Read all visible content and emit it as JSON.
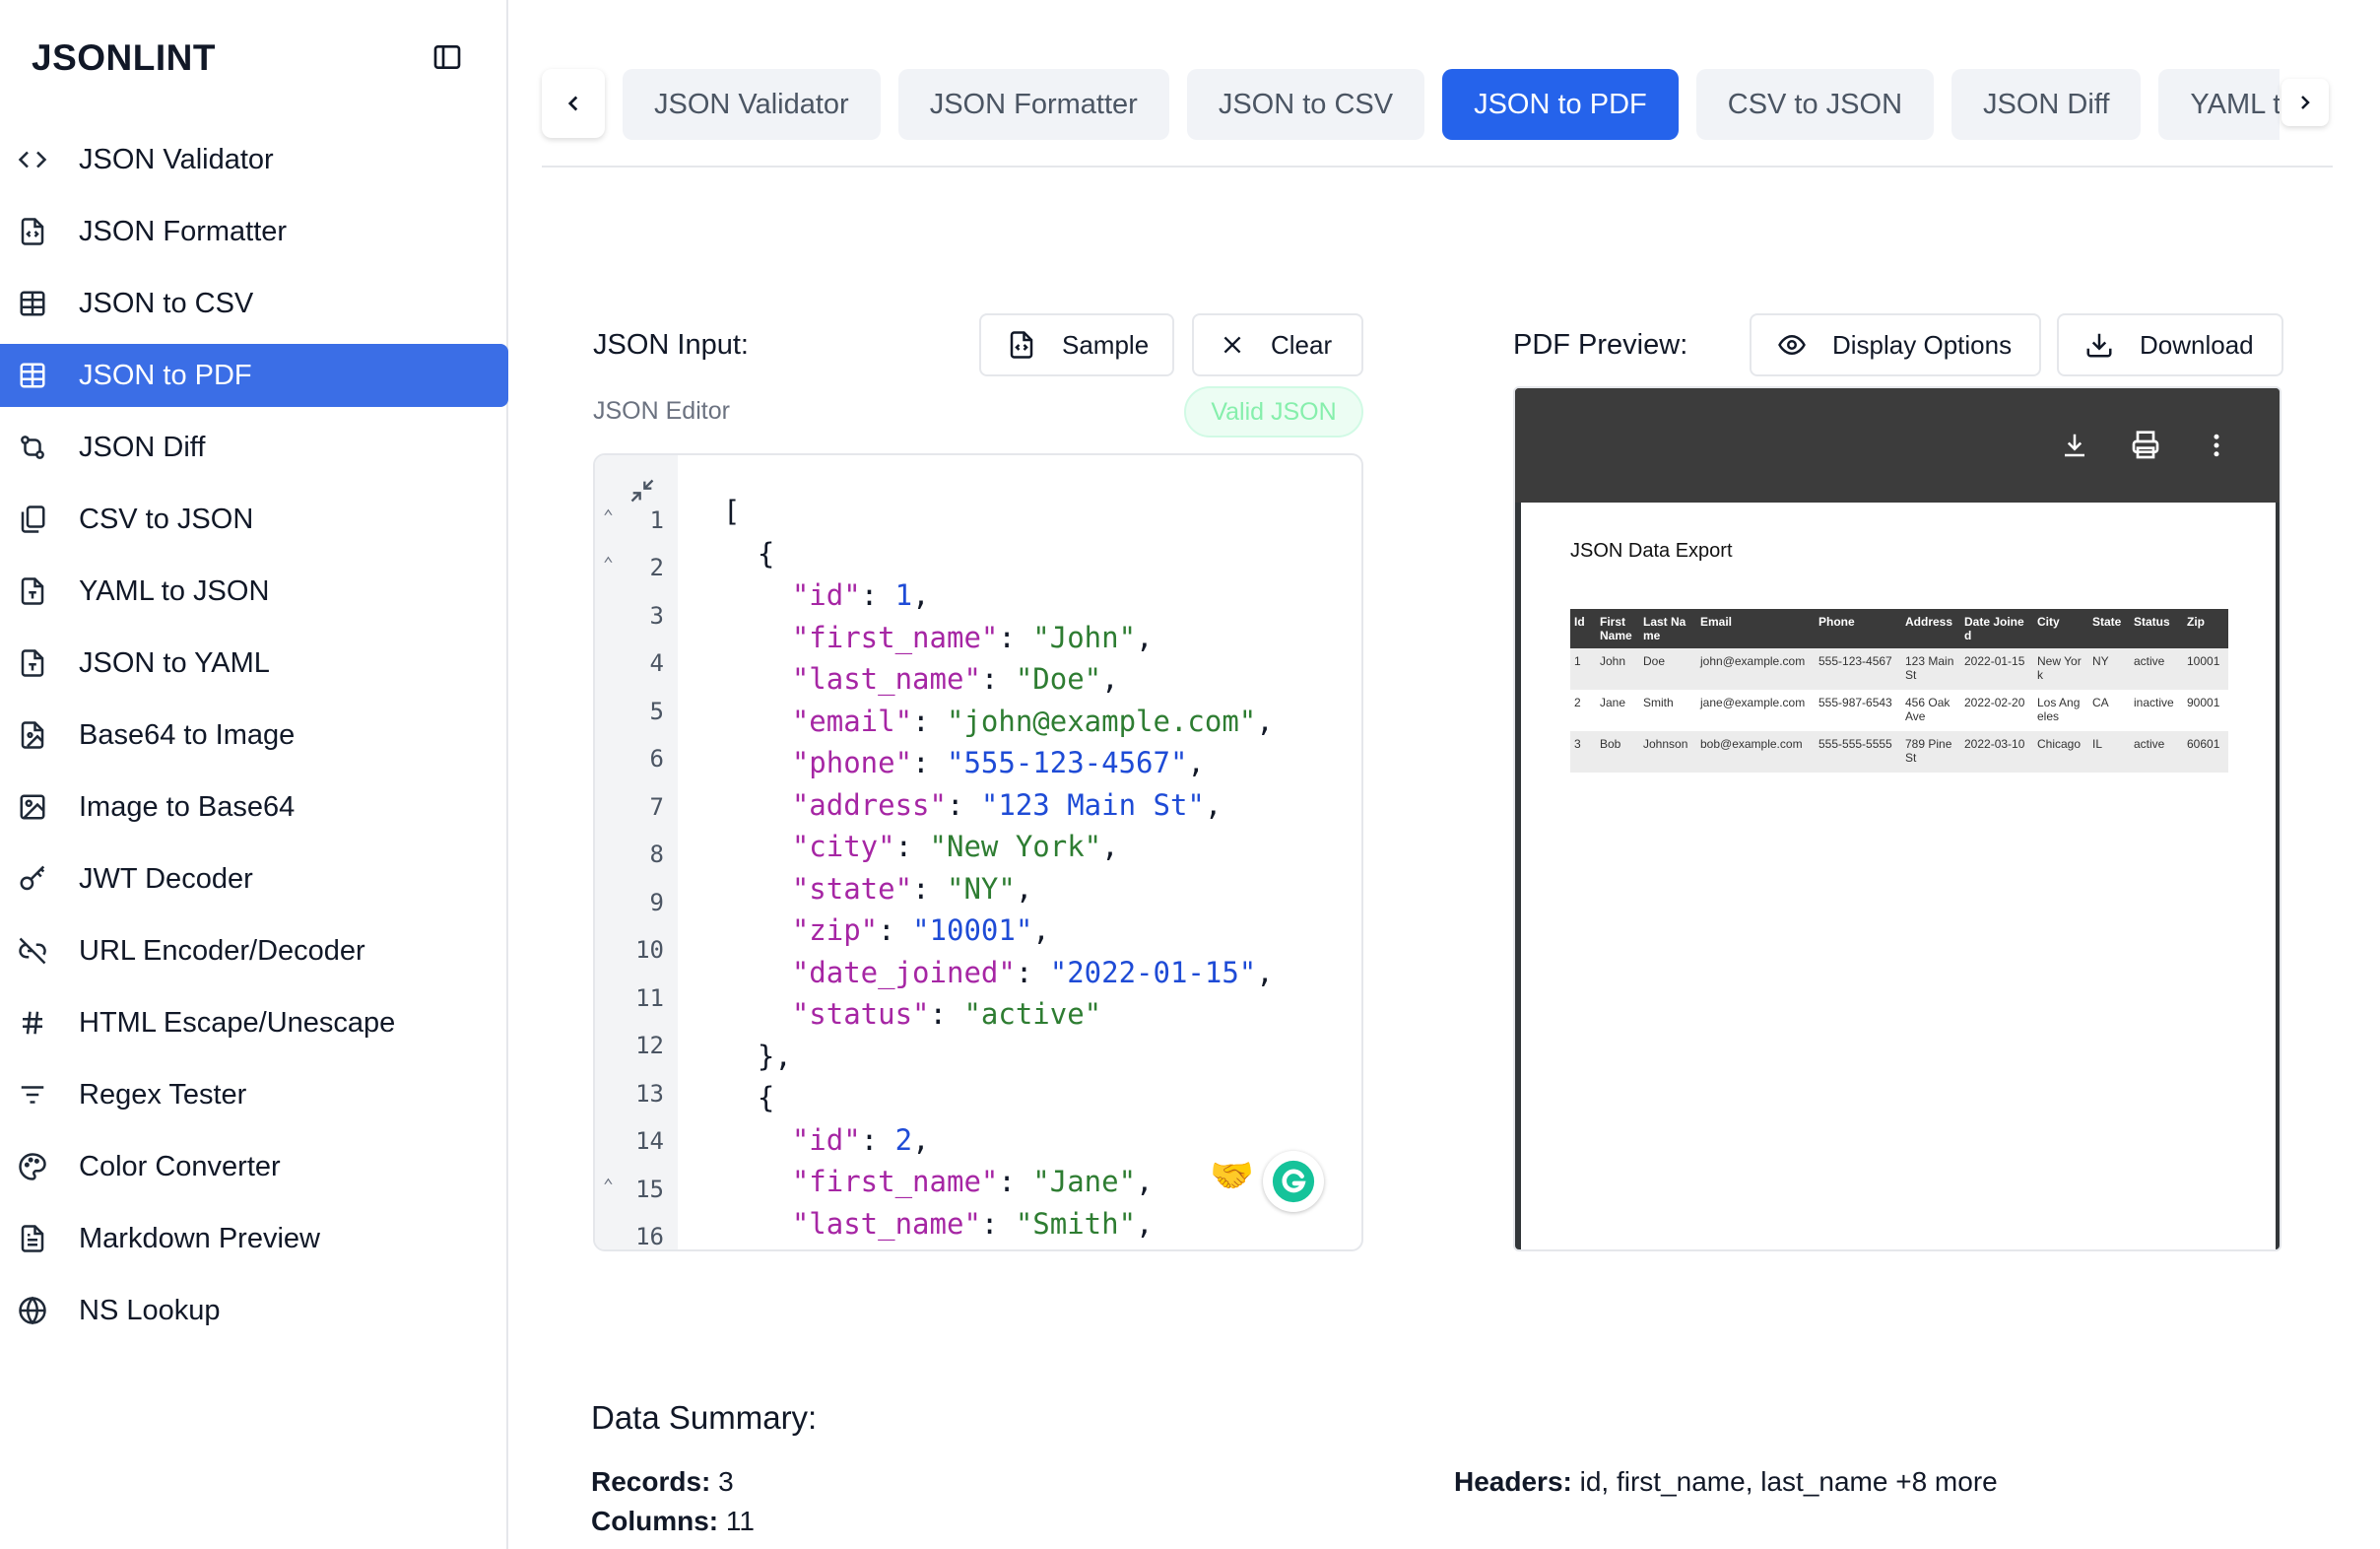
{
  "app": {
    "logo": "JSONLINT"
  },
  "sidebar": {
    "items": [
      {
        "label": "JSON Validator",
        "icon": "code-icon",
        "active": false
      },
      {
        "label": "JSON Formatter",
        "icon": "file-code-icon",
        "active": false
      },
      {
        "label": "JSON to CSV",
        "icon": "table-icon",
        "active": false
      },
      {
        "label": "JSON to PDF",
        "icon": "table-icon",
        "active": true
      },
      {
        "label": "JSON Diff",
        "icon": "git-compare-icon",
        "active": false
      },
      {
        "label": "CSV to JSON",
        "icon": "files-icon",
        "active": false
      },
      {
        "label": "YAML to JSON",
        "icon": "file-type-icon",
        "active": false
      },
      {
        "label": "JSON to YAML",
        "icon": "file-type-icon",
        "active": false
      },
      {
        "label": "Base64 to Image",
        "icon": "file-image-icon",
        "active": false
      },
      {
        "label": "Image to Base64",
        "icon": "image-icon",
        "active": false
      },
      {
        "label": "JWT Decoder",
        "icon": "key-icon",
        "active": false
      },
      {
        "label": "URL Encoder/Decoder",
        "icon": "link-icon",
        "active": false
      },
      {
        "label": "HTML Escape/Unescape",
        "icon": "hash-icon",
        "active": false
      },
      {
        "label": "Regex Tester",
        "icon": "filter-icon",
        "active": false
      },
      {
        "label": "Color Converter",
        "icon": "palette-icon",
        "active": false
      },
      {
        "label": "Markdown Preview",
        "icon": "file-text-icon",
        "active": false
      },
      {
        "label": "NS Lookup",
        "icon": "globe-icon",
        "active": false
      }
    ]
  },
  "tabs": [
    {
      "label": "JSON Validator",
      "active": false
    },
    {
      "label": "JSON Formatter",
      "active": false
    },
    {
      "label": "JSON to CSV",
      "active": false
    },
    {
      "label": "JSON to PDF",
      "active": true
    },
    {
      "label": "CSV to JSON",
      "active": false
    },
    {
      "label": "JSON Diff",
      "active": false
    },
    {
      "label": "YAML to JSON",
      "active": false
    }
  ],
  "input_panel": {
    "title": "JSON Input:",
    "sample_label": "Sample",
    "clear_label": "Clear",
    "editor_label": "JSON Editor",
    "status": "Valid JSON",
    "line_numbers": [
      "1",
      "2",
      "3",
      "4",
      "5",
      "6",
      "7",
      "8",
      "9",
      "10",
      "11",
      "12",
      "13",
      "14",
      "15",
      "16"
    ],
    "folded_lines": [
      "1",
      "2",
      "15"
    ]
  },
  "preview_panel": {
    "title": "PDF Preview:",
    "display_options_label": "Display Options",
    "download_label": "Download",
    "pdf_heading": "JSON Data Export",
    "table_headers": [
      "Id",
      "First Name",
      "Last Name",
      "Email",
      "Phone",
      "Address",
      "Date Joined",
      "City",
      "State",
      "Status",
      "Zip"
    ],
    "table_rows": [
      [
        "1",
        "John",
        "Doe",
        "john@example.com",
        "555-123-4567",
        "123 Main St",
        "2022-01-15",
        "New York",
        "NY",
        "active",
        "10001"
      ],
      [
        "2",
        "Jane",
        "Smith",
        "jane@example.com",
        "555-987-6543",
        "456 Oak Ave",
        "2022-02-20",
        "Los Angeles",
        "CA",
        "inactive",
        "90001"
      ],
      [
        "3",
        "Bob",
        "Johnson",
        "bob@example.com",
        "555-555-5555",
        "789 Pine St",
        "2022-03-10",
        "Chicago",
        "IL",
        "active",
        "60601"
      ]
    ]
  },
  "summary": {
    "title": "Data Summary:",
    "records_label": "Records:",
    "records_value": "3",
    "columns_label": "Columns:",
    "columns_value": "11",
    "headers_label": "Headers:",
    "headers_value": "id, first_name, last_name +8 more"
  }
}
